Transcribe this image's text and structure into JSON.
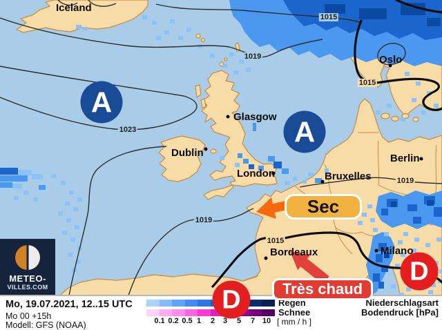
{
  "branding": {
    "logo_line1": "METEO-",
    "logo_line2": "VILLES.COM"
  },
  "footer": {
    "datetime": "Mo, 19.07.2021, 12..15 UTC",
    "run": "Mo 00 +15h",
    "model": "Modell: GFS (NOAA)"
  },
  "legend": {
    "ticks": [
      "0.1",
      "0.2",
      "0.5",
      "1",
      "2",
      "3",
      "5",
      "7",
      "10"
    ],
    "rain_label": "Regen",
    "snow_label": "Schnee",
    "unit_label": "[ mm / h ]",
    "right_line1": "Niederschlagsart",
    "right_line2": "Bodendruck [hPa]",
    "rain_colors": [
      "#aad4ff",
      "#85bcff",
      "#5ea4fa",
      "#3f8df2",
      "#2b77e2",
      "#1c60c8",
      "#1549a8",
      "#0e3a8c",
      "#0a2d70",
      "#082052"
    ],
    "snow_colors": [
      "#ffd4f8",
      "#ffacf0",
      "#ff8cea",
      "#ff64e0",
      "#f73cd4",
      "#e01ec2",
      "#c004aa",
      "#9a0092",
      "#72007a",
      "#520062"
    ]
  },
  "map": {
    "cities": [
      {
        "name": "Iceland"
      },
      {
        "name": "Oslo"
      },
      {
        "name": "Glasgow"
      },
      {
        "name": "Dublin"
      },
      {
        "name": "London"
      },
      {
        "name": "Bruxelles"
      },
      {
        "name": "Berlin"
      },
      {
        "name": "Bordeaux"
      },
      {
        "name": "Milano"
      }
    ],
    "isobars": [
      {
        "value": "1015"
      },
      {
        "value": "1019"
      },
      {
        "value": "1023"
      },
      {
        "value": "1019"
      },
      {
        "value": "1015"
      },
      {
        "value": "1019"
      },
      {
        "value": "1015"
      }
    ],
    "pressure_centers": [
      {
        "letter": "A",
        "type": "high"
      },
      {
        "letter": "A",
        "type": "high"
      },
      {
        "letter": "D",
        "type": "low"
      },
      {
        "letter": "D",
        "type": "low"
      }
    ],
    "annotations": {
      "sec": {
        "text": "Sec",
        "bg": "#f2b23f",
        "arrow_color": "#f8690d"
      },
      "tres_chaud": {
        "text": "Très chaud",
        "bg": "#e23b31",
        "arrow_color": "#e0413a"
      }
    },
    "colors": {
      "sea": "#a9cce9",
      "land": "#f8dca7",
      "coastline": "#c98a3f",
      "precip_light": "#8cc2f8",
      "precip_medium": "#4a98f0",
      "precip_dark": "#1a66cc",
      "precip_darkest": "#0b4aa2",
      "high_center": "#1a4b96",
      "low_center": "#e41e1e"
    }
  }
}
